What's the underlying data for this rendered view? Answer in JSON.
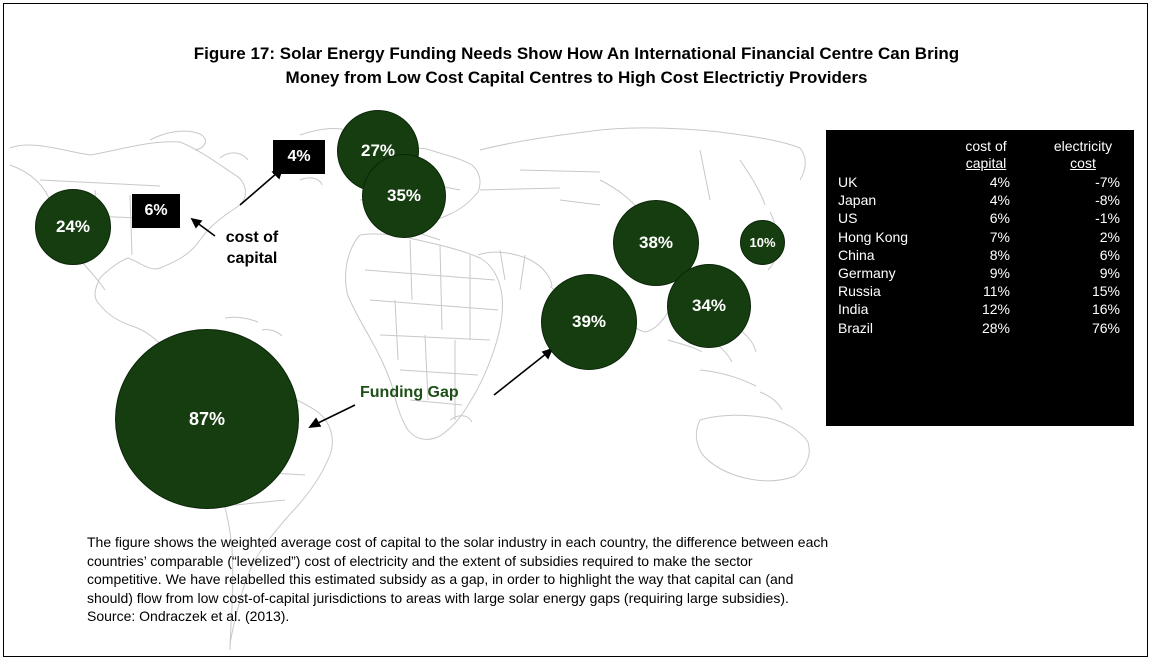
{
  "title_line1": "Figure 17: Solar Energy Funding Needs Show How An International Financial Centre Can Bring",
  "title_line2": "Money from Low Cost Capital Centres to High Cost Electrictiy Providers",
  "map": {
    "bubbles": [
      {
        "id": "us-bubble",
        "label": "24%"
      },
      {
        "id": "uk-bubble",
        "label": "27%"
      },
      {
        "id": "germany-bubble",
        "label": "35%"
      },
      {
        "id": "russia-bubble",
        "label": "38%"
      },
      {
        "id": "japan-bubble",
        "label": "10%"
      },
      {
        "id": "china-bubble",
        "label": "34%"
      },
      {
        "id": "india-bubble",
        "label": "39%"
      },
      {
        "id": "brazil-bubble",
        "label": "87%"
      }
    ],
    "cost_boxes": [
      {
        "id": "us-cost-box",
        "label": "6%"
      },
      {
        "id": "uk-cost-box",
        "label": "4%"
      }
    ],
    "cost_annotation_line1": "cost of",
    "cost_annotation_line2": "capital",
    "funding_gap_label": "Funding Gap"
  },
  "table": {
    "headers": {
      "col1_line1": "cost of",
      "col1_line2": "capital",
      "col2_line1": "electricity",
      "col2_line2": "cost"
    },
    "rows": [
      {
        "country": "UK",
        "capital": "4%",
        "electricity": "-7%"
      },
      {
        "country": "Japan",
        "capital": "4%",
        "electricity": "-8%"
      },
      {
        "country": "US",
        "capital": "6%",
        "electricity": "-1%"
      },
      {
        "country": "Hong Kong",
        "capital": "7%",
        "electricity": "2%"
      },
      {
        "country": "China",
        "capital": "8%",
        "electricity": "6%"
      },
      {
        "country": "Germany",
        "capital": "9%",
        "electricity": "9%"
      },
      {
        "country": "Russia",
        "capital": "11%",
        "electricity": "15%"
      },
      {
        "country": "India",
        "capital": "12%",
        "electricity": "16%"
      },
      {
        "country": "Brazil",
        "capital": "28%",
        "electricity": "76%"
      }
    ]
  },
  "caption": [
    "The figure shows the weighted average cost of capital to the solar industry in each country, the difference between each",
    "countries’ comparable (“levelized”) cost of electricity and the extent of subsidies required to make the sector",
    "competitive. We have relabelled this estimated subsidy as a gap, in order to highlight the way that capital can (and",
    "should) flow from low cost-of-capital jurisdictions to areas with large solar energy gaps (requiring large subsidies).",
    "Source:  Ondraczek et al. (2013)."
  ],
  "colors": {
    "bubble_fill": "#163d10",
    "funding_gap_text": "#1f4f18",
    "map_lines": "#c8c8c8"
  }
}
